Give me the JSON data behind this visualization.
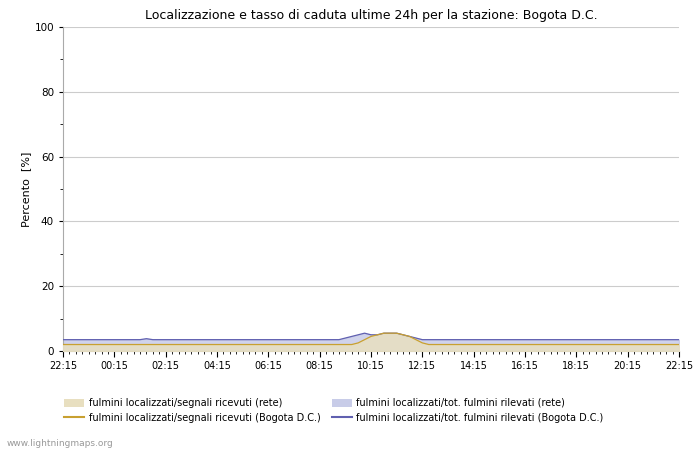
{
  "title": "Localizzazione e tasso di caduta ultime 24h per la stazione: Bogota D.C.",
  "ylabel": "Percento  [%]",
  "xlim": [
    0,
    96
  ],
  "ylim": [
    0,
    100
  ],
  "yticks": [
    0,
    20,
    40,
    60,
    80,
    100
  ],
  "ytick_minor": [
    10,
    30,
    50,
    70,
    90
  ],
  "xtick_labels": [
    "22:15",
    "00:15",
    "02:15",
    "04:15",
    "06:15",
    "08:15",
    "10:15",
    "12:15",
    "14:15",
    "16:15",
    "18:15",
    "20:15",
    "22:15"
  ],
  "watermark": "www.lightningmaps.org",
  "fill_rete_color": "#e8dfc0",
  "fill_rete_alpha": 0.85,
  "fill_bogota_color": "#c8cce8",
  "fill_bogota_alpha": 0.85,
  "line_rete_color": "#c8a030",
  "line_bogota_color": "#6060b0",
  "bg_color": "#ffffff",
  "grid_color": "#cccccc",
  "legend1_label": "fulmini localizzati/segnali ricevuti (rete)",
  "legend2_label": "fulmini localizzati/segnali ricevuti (Bogota D.C.)",
  "legend3_label": "fulmini localizzati/tot. fulmini rilevati (rete)",
  "legend4_label": "fulmini localizzati/tot. fulmini rilevati (Bogota D.C.)",
  "bogota_fill": [
    3.5,
    3.5,
    3.5,
    3.5,
    3.5,
    3.5,
    3.5,
    3.5,
    3.5,
    3.5,
    3.5,
    3.5,
    3.5,
    3.8,
    3.5,
    3.5,
    3.5,
    3.5,
    3.5,
    3.5,
    3.5,
    3.5,
    3.5,
    3.5,
    3.5,
    3.5,
    3.5,
    3.5,
    3.5,
    3.5,
    3.5,
    3.5,
    3.5,
    3.5,
    3.5,
    3.5,
    3.5,
    3.5,
    3.5,
    3.5,
    3.5,
    3.5,
    3.5,
    3.5,
    4.0,
    4.5,
    5.0,
    5.5,
    5.0,
    5.0,
    5.5,
    5.5,
    5.5,
    5.0,
    4.5,
    4.0,
    3.5,
    3.5,
    3.5,
    3.5,
    3.5,
    3.5,
    3.5,
    3.5,
    3.5,
    3.5,
    3.5,
    3.5,
    3.5,
    3.5,
    3.5,
    3.5,
    3.5,
    3.5,
    3.5,
    3.5,
    3.5,
    3.5,
    3.5,
    3.5,
    3.5,
    3.5,
    3.5,
    3.5,
    3.5,
    3.5,
    3.5,
    3.5,
    3.5,
    3.5,
    3.5,
    3.5,
    3.5,
    3.5,
    3.5,
    3.5,
    3.5
  ],
  "rete_fill": [
    2.0,
    2.0,
    2.0,
    2.0,
    2.0,
    2.0,
    2.0,
    2.0,
    2.0,
    2.0,
    2.0,
    2.0,
    2.0,
    2.0,
    2.0,
    2.0,
    2.0,
    2.0,
    2.0,
    2.0,
    2.0,
    2.0,
    2.0,
    2.0,
    2.0,
    2.0,
    2.0,
    2.0,
    2.0,
    2.0,
    2.0,
    2.0,
    2.0,
    2.0,
    2.0,
    2.0,
    2.0,
    2.0,
    2.0,
    2.0,
    2.0,
    2.0,
    2.0,
    2.0,
    2.0,
    2.0,
    2.5,
    3.5,
    4.5,
    5.0,
    5.5,
    5.5,
    5.5,
    5.0,
    4.5,
    3.5,
    2.5,
    2.0,
    2.0,
    2.0,
    2.0,
    2.0,
    2.0,
    2.0,
    2.0,
    2.0,
    2.0,
    2.0,
    2.0,
    2.0,
    2.0,
    2.0,
    2.0,
    2.0,
    2.0,
    2.0,
    2.0,
    2.0,
    2.0,
    2.0,
    2.0,
    2.0,
    2.0,
    2.0,
    2.0,
    2.0,
    2.0,
    2.0,
    2.0,
    2.0,
    2.0,
    2.0,
    2.0,
    2.0,
    2.0,
    2.0,
    2.0
  ]
}
